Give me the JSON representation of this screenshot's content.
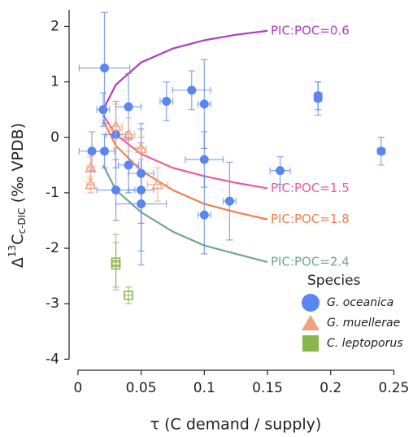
{
  "chart_data": {
    "type": "scatter",
    "x_label": "τ (C demand / supply)",
    "y_label": {
      "prefix": "Δ",
      "sup": "13",
      "main": "C",
      "sub": "c-DIC",
      "suffix": " (‰ VPDB)"
    },
    "xlim": [
      -0.007,
      0.26
    ],
    "ylim": [
      -4.2,
      2.3
    ],
    "xticks": [
      0,
      0.05,
      0.1,
      0.15,
      0.2,
      0.25
    ],
    "yticks": [
      -4,
      -3,
      -2,
      -1,
      0,
      1,
      2
    ],
    "legend_title": "Species",
    "legend": "lower right",
    "series": [
      {
        "name": "G. oceanica",
        "color": "#5b86f0",
        "marker": "circle",
        "x": [
          0.021,
          0.02,
          0.011,
          0.021,
          0.03,
          0.04,
          0.04,
          0.03,
          0.05,
          0.05,
          0.05,
          0.07,
          0.09,
          0.1,
          0.1,
          0.1,
          0.12,
          0.16,
          0.19,
          0.19,
          0.24
        ],
        "values": [
          1.25,
          0.5,
          -0.25,
          -0.25,
          0.05,
          0.55,
          -0.5,
          -0.95,
          -0.65,
          -0.95,
          -1.2,
          0.65,
          0.85,
          0.6,
          -0.4,
          -1.4,
          -1.15,
          -0.6,
          0.7,
          0.75,
          -0.25
        ],
        "xerr": [
          0.02,
          0.005,
          0.01,
          0.008,
          0.008,
          0.01,
          0.008,
          0.015,
          0.01,
          0.01,
          0.02,
          0.005,
          0.015,
          0.005,
          0.015,
          0.005,
          0.005,
          0.008,
          0.003,
          0.003,
          0.003
        ],
        "yerr": [
          1.0,
          0.3,
          0.35,
          0.3,
          0.6,
          0.6,
          0.5,
          0.55,
          0.9,
          1.1,
          1.1,
          0.35,
          0.35,
          0.8,
          0.5,
          0.7,
          0.7,
          0.25,
          0.3,
          0.25,
          0.25
        ]
      },
      {
        "name": "G. muellerae",
        "color": "#f3a07f",
        "marker": "triangle",
        "x": [
          0.01,
          0.01,
          0.03,
          0.04,
          0.05,
          0.063
        ],
        "values": [
          -0.55,
          -0.85,
          0.2,
          0.05,
          -0.2,
          -0.85
        ],
        "xerr": [
          0.003,
          0.003,
          0.005,
          0.005,
          0.004,
          0.008
        ],
        "yerr": [
          0.2,
          0.15,
          0.4,
          0.3,
          0.2,
          0.3
        ]
      },
      {
        "name": "C. leptoporus",
        "color": "#8ab54b",
        "marker": "square",
        "x": [
          0.03,
          0.03,
          0.04
        ],
        "values": [
          -2.25,
          -2.3,
          -2.85
        ],
        "xerr": [
          0.003,
          0.003,
          0.003
        ],
        "yerr": [
          0.5,
          0.4,
          0.15
        ]
      }
    ],
    "curves": [
      {
        "name": "PIC:POC=0.6",
        "color": "#b03cbf",
        "x": [
          0.02,
          0.03,
          0.05,
          0.075,
          0.1,
          0.125,
          0.15
        ],
        "values": [
          0.5,
          0.95,
          1.35,
          1.6,
          1.75,
          1.85,
          1.92
        ]
      },
      {
        "name": "PIC:POC=1.5",
        "color": "#ee5b9a",
        "x": [
          0.02,
          0.03,
          0.05,
          0.075,
          0.1,
          0.125,
          0.15
        ],
        "values": [
          0.4,
          0.05,
          -0.3,
          -0.55,
          -0.7,
          -0.82,
          -0.92
        ]
      },
      {
        "name": "PIC:POC=1.8",
        "color": "#f08050",
        "x": [
          0.02,
          0.03,
          0.05,
          0.075,
          0.1,
          0.125,
          0.15
        ],
        "values": [
          0.3,
          -0.15,
          -0.6,
          -0.95,
          -1.2,
          -1.35,
          -1.48
        ]
      },
      {
        "name": "PIC:POC=2.4",
        "color": "#6fa88e",
        "x": [
          0.02,
          0.03,
          0.05,
          0.075,
          0.1,
          0.125,
          0.15
        ],
        "values": [
          -0.5,
          -0.95,
          -1.35,
          -1.7,
          -1.95,
          -2.1,
          -2.25
        ]
      }
    ]
  }
}
